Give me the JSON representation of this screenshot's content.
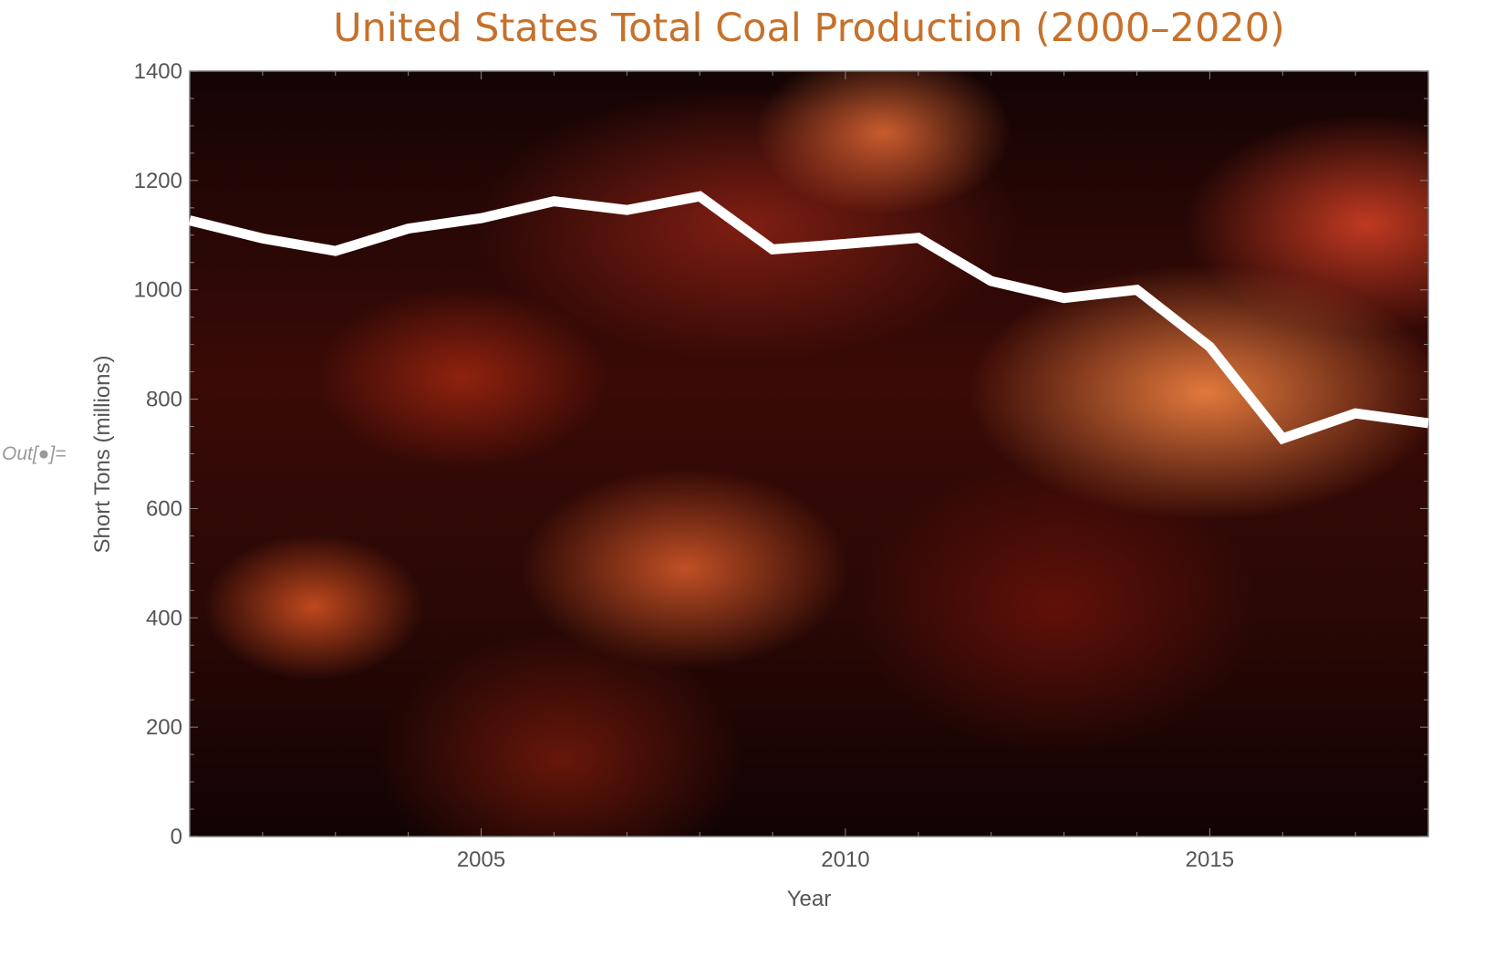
{
  "notebook": {
    "out_label": "Out[●]="
  },
  "chart_data": {
    "type": "line",
    "title": "United States Total Coal Production (2000–2020)",
    "xlabel": "Year",
    "ylabel": "Short Tons (millions)",
    "xlim": [
      2001,
      2018
    ],
    "ylim": [
      0,
      1400
    ],
    "x_ticks": [
      2005,
      2010,
      2015
    ],
    "y_ticks": [
      0,
      200,
      400,
      600,
      800,
      1000,
      1200,
      1400
    ],
    "grid": false,
    "background": "photo of glowing coal embers",
    "line_color": "#ffffff",
    "title_color": "#c6712c",
    "x": [
      2001,
      2002,
      2003,
      2004,
      2005,
      2006,
      2007,
      2008,
      2009,
      2010,
      2011,
      2012,
      2013,
      2014,
      2015,
      2016,
      2017,
      2018
    ],
    "values": [
      1127,
      1094,
      1071,
      1112,
      1131,
      1162,
      1146,
      1171,
      1074,
      1084,
      1095,
      1016,
      985,
      1000,
      896,
      728,
      774,
      756
    ]
  }
}
